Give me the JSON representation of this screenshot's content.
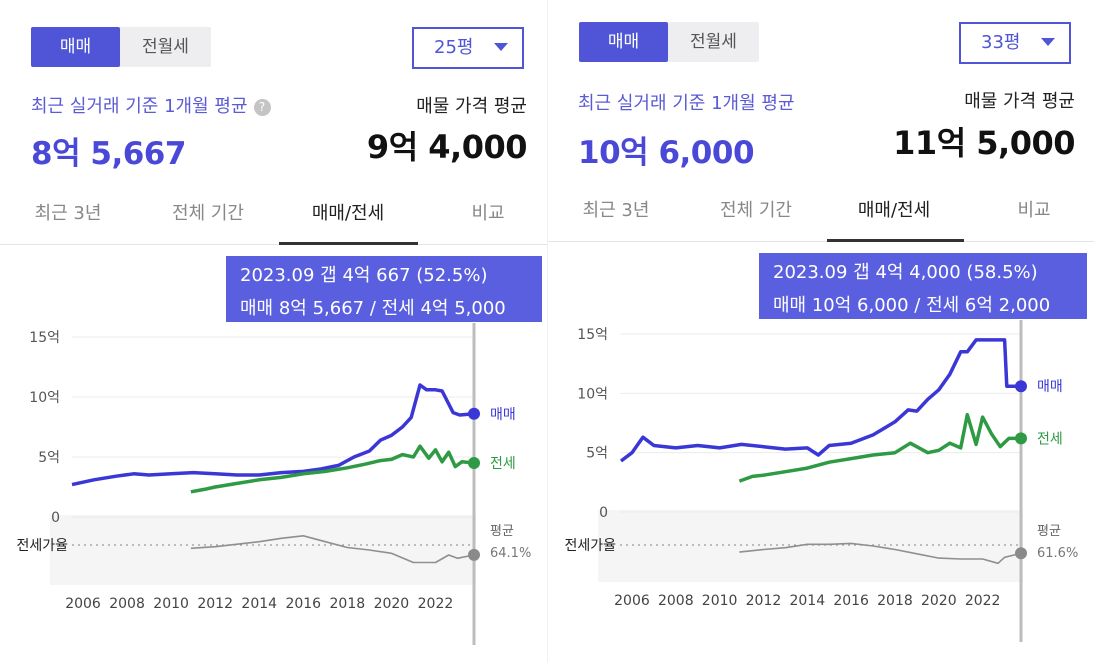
{
  "panels": [
    {
      "tabs_toggle": [
        "매매",
        "전월세"
      ],
      "size": "25평",
      "recent_avg_label": "최근 실거래 기준 1개월 평균",
      "recent_avg_value": "8억 5,667",
      "listing_avg_label": "매물 가격 평균",
      "listing_avg_value": "9억 4,000",
      "period_tabs": [
        "최근 3년",
        "전체 기간",
        "매매/전세",
        "비교"
      ],
      "tooltip": {
        "line1": "2023.09  갭 4억 667 (52.5%)",
        "line2": "매매 8억 5,667 / 전세 4억 5,000"
      },
      "end_labels": {
        "sale": "매매",
        "jeonse": "전세",
        "avg": "평균",
        "avg_value": "64.1%"
      },
      "ratio_label": "전세가율"
    },
    {
      "tabs_toggle": [
        "매매",
        "전월세"
      ],
      "size": "33평",
      "recent_avg_label": "최근 실거래 기준 1개월 평균",
      "recent_avg_value": "10억 6,000",
      "listing_avg_label": "매물 가격 평균",
      "listing_avg_value": "11억 5,000",
      "period_tabs": [
        "최근 3년",
        "전체 기간",
        "매매/전세",
        "비교"
      ],
      "tooltip": {
        "line1": "2023.09  갭 4억 4,000 (58.5%)",
        "line2": "매매 10억 6,000 / 전세 6억 2,000"
      },
      "end_labels": {
        "sale": "매매",
        "jeonse": "전세",
        "avg": "평균",
        "avg_value": "61.6%"
      },
      "ratio_label": "전세가율"
    }
  ],
  "colors": {
    "accent": "#4f55d6",
    "sale": "#3b37d6",
    "jeonse": "#2e9a43",
    "ratio": "#8f8f8f"
  },
  "chart_data": [
    {
      "type": "line",
      "y_tick_labels": [
        "15억",
        "10억",
        "5억",
        "0"
      ],
      "y_ticks": [
        15,
        10,
        5,
        0
      ],
      "x_tick_labels": [
        "2006",
        "2008",
        "2010",
        "2012",
        "2014",
        "2016",
        "2018",
        "2020",
        "2022"
      ],
      "xlim": [
        2005.5,
        2023.75
      ],
      "ylim": [
        0,
        15
      ],
      "series": [
        {
          "name": "매매",
          "x": [
            2005.5,
            2006.5,
            2007.5,
            2008.3,
            2009.0,
            2010.0,
            2011.0,
            2012.0,
            2013.0,
            2014.0,
            2015.0,
            2016.0,
            2016.8,
            2017.6,
            2018.3,
            2019.0,
            2019.5,
            2020.0,
            2020.5,
            2020.9,
            2021.3,
            2021.6,
            2022.0,
            2022.3,
            2022.8,
            2023.1,
            2023.75
          ],
          "values": [
            2.7,
            3.1,
            3.4,
            3.6,
            3.5,
            3.6,
            3.7,
            3.6,
            3.5,
            3.5,
            3.7,
            3.8,
            4.0,
            4.3,
            5.0,
            5.5,
            6.4,
            6.8,
            7.5,
            8.3,
            11.0,
            10.6,
            10.6,
            10.5,
            8.7,
            8.5,
            8.6
          ]
        },
        {
          "name": "전세",
          "x": [
            2010.9,
            2011.5,
            2012.0,
            2013.0,
            2014.0,
            2015.0,
            2016.0,
            2017.0,
            2018.0,
            2018.8,
            2019.5,
            2020.0,
            2020.5,
            2021.0,
            2021.3,
            2021.7,
            2022.0,
            2022.3,
            2022.6,
            2022.9,
            2023.2,
            2023.75
          ],
          "values": [
            2.1,
            2.3,
            2.5,
            2.8,
            3.1,
            3.3,
            3.6,
            3.8,
            4.1,
            4.4,
            4.7,
            4.8,
            5.2,
            5.0,
            5.9,
            4.9,
            5.6,
            4.6,
            5.4,
            4.2,
            4.6,
            4.5
          ]
        },
        {
          "name": "전세가율",
          "x": [
            2010.9,
            2012.0,
            2013.0,
            2014.0,
            2015.0,
            2016.0,
            2017.0,
            2018.0,
            2019.0,
            2020.0,
            2021.0,
            2022.0,
            2022.6,
            2023.0,
            2023.75
          ],
          "values": [
            0.72,
            0.74,
            0.77,
            0.8,
            0.84,
            0.87,
            0.8,
            0.73,
            0.7,
            0.66,
            0.55,
            0.55,
            0.64,
            0.6,
            0.641
          ]
        }
      ]
    },
    {
      "type": "line",
      "y_tick_labels": [
        "15억",
        "10억",
        "5억",
        "0"
      ],
      "y_ticks": [
        15,
        10,
        5,
        0
      ],
      "x_tick_labels": [
        "2006",
        "2008",
        "2010",
        "2012",
        "2014",
        "2016",
        "2018",
        "2020",
        "2022"
      ],
      "xlim": [
        2005.5,
        2023.75
      ],
      "ylim": [
        0,
        15
      ],
      "series": [
        {
          "name": "매매",
          "x": [
            2005.5,
            2006.0,
            2006.5,
            2007.0,
            2008.0,
            2009.0,
            2010.0,
            2011.0,
            2012.0,
            2013.0,
            2014.0,
            2014.5,
            2015.0,
            2016.0,
            2017.0,
            2018.0,
            2018.6,
            2019.0,
            2019.5,
            2020.0,
            2020.5,
            2021.0,
            2021.3,
            2021.7,
            2022.0,
            2022.5,
            2023.0,
            2023.1,
            2023.75
          ],
          "values": [
            4.3,
            5.0,
            6.3,
            5.6,
            5.4,
            5.6,
            5.4,
            5.7,
            5.5,
            5.3,
            5.4,
            4.8,
            5.6,
            5.8,
            6.5,
            7.6,
            8.6,
            8.5,
            9.5,
            10.3,
            11.6,
            13.5,
            13.5,
            14.5,
            14.5,
            14.5,
            14.5,
            10.6,
            10.6
          ]
        },
        {
          "name": "전세",
          "x": [
            2010.9,
            2011.5,
            2012.0,
            2013.0,
            2014.0,
            2015.0,
            2016.0,
            2017.0,
            2018.0,
            2018.7,
            2019.5,
            2020.0,
            2020.5,
            2021.0,
            2021.3,
            2021.7,
            2022.0,
            2022.4,
            2022.8,
            2023.2,
            2023.75
          ],
          "values": [
            2.6,
            3.0,
            3.1,
            3.4,
            3.7,
            4.2,
            4.5,
            4.8,
            5.0,
            5.8,
            5.0,
            5.2,
            5.8,
            5.4,
            8.2,
            5.7,
            8.0,
            6.6,
            5.5,
            6.2,
            6.2
          ]
        },
        {
          "name": "전세가율",
          "x": [
            2010.9,
            2012.0,
            2013.0,
            2014.0,
            2015.0,
            2016.0,
            2017.0,
            2018.0,
            2019.0,
            2020.0,
            2021.0,
            2022.0,
            2022.7,
            2023.0,
            2023.75
          ],
          "values": [
            0.63,
            0.66,
            0.68,
            0.72,
            0.72,
            0.73,
            0.7,
            0.66,
            0.61,
            0.56,
            0.55,
            0.55,
            0.5,
            0.57,
            0.616
          ]
        }
      ]
    }
  ]
}
